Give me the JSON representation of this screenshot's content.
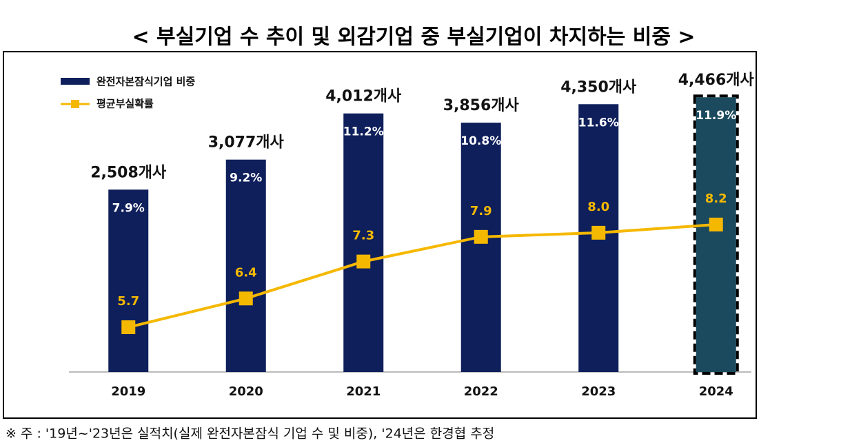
{
  "chart_data": {
    "type": "bar_line",
    "title": "< 부실기업 수 추이 및 외감기업 중 부실기업이 차지하는 비중 >",
    "footnote": "※ 주 : '19년~'23년은 실적치(실제 완전자본잠식 기업 수 및 비중), '24년은 한경협 추정",
    "categories": [
      "2019",
      "2020",
      "2021",
      "2022",
      "2023",
      "2024"
    ],
    "count_labels": [
      "2,508개사",
      "3,077개사",
      "4,012개사",
      "3,856개사",
      "4,350개사",
      "4,466개사"
    ],
    "series": [
      {
        "name": "완전자본잠식기업 비중",
        "type": "bar",
        "color": "#0e1f5b",
        "highlight_color": "#1b4a5e",
        "highlight_index": 5,
        "values": [
          7.9,
          9.2,
          11.2,
          10.8,
          11.6,
          11.9
        ],
        "value_labels": [
          "7.9%",
          "9.2%",
          "11.2%",
          "10.8%",
          "11.6%",
          "11.9%"
        ]
      },
      {
        "name": "평균부실확률",
        "type": "line",
        "axis": "y2",
        "color": "#f5b800",
        "values": [
          5.7,
          6.4,
          7.3,
          7.9,
          8.0,
          8.2
        ],
        "value_labels": [
          "5.7",
          "6.4",
          "7.3",
          "7.9",
          "8.0",
          "8.2"
        ]
      }
    ],
    "ylim": [
      0,
      13.13
    ],
    "y2lim": [
      4.61,
      11.99
    ]
  }
}
